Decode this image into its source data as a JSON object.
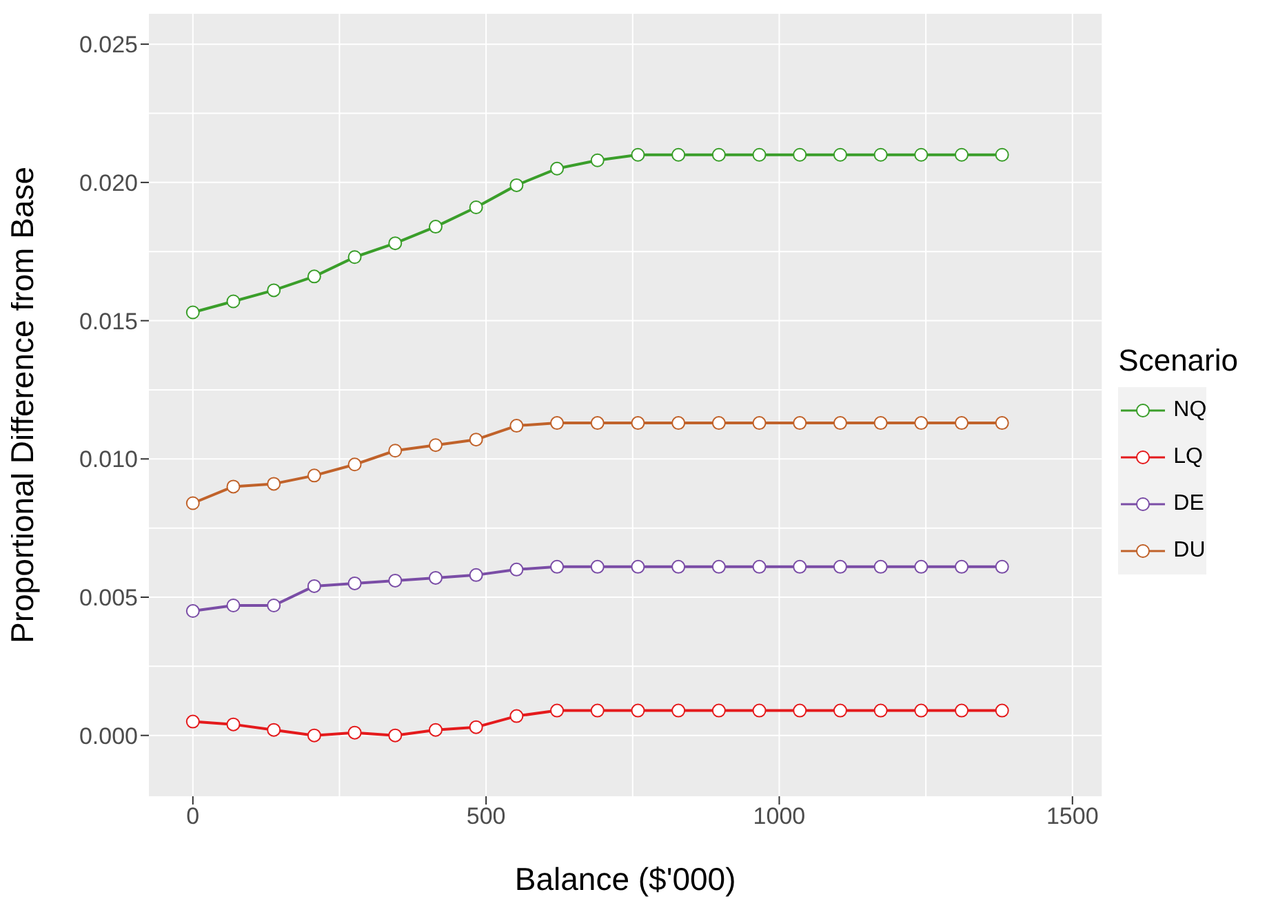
{
  "chart_data": {
    "type": "line",
    "xlabel": "Balance ($'000)",
    "ylabel": "Proportional Difference from Base",
    "legend_title": "Scenario",
    "x": [
      0,
      69,
      138,
      207,
      276,
      345,
      414,
      483,
      552,
      621,
      690,
      759,
      828,
      897,
      966,
      1035,
      1104,
      1173,
      1242,
      1311,
      1380
    ],
    "series": [
      {
        "name": "NQ",
        "color": "#3a9e2a",
        "values": [
          0.0153,
          0.0157,
          0.0161,
          0.0166,
          0.0173,
          0.0178,
          0.0184,
          0.0191,
          0.0199,
          0.0205,
          0.0208,
          0.021,
          0.021,
          0.021,
          0.021,
          0.021,
          0.021,
          0.021,
          0.021,
          0.021,
          0.021
        ]
      },
      {
        "name": "LQ",
        "color": "#e41a1c",
        "values": [
          0.0005,
          0.0004,
          0.0002,
          0.0,
          0.0001,
          0.0,
          0.0002,
          0.0003,
          0.0007,
          0.0009,
          0.0009,
          0.0009,
          0.0009,
          0.0009,
          0.0009,
          0.0009,
          0.0009,
          0.0009,
          0.0009,
          0.0009,
          0.0009
        ]
      },
      {
        "name": "DE",
        "color": "#7a4da6",
        "values": [
          0.0045,
          0.0047,
          0.0047,
          0.0054,
          0.0055,
          0.0056,
          0.0057,
          0.0058,
          0.006,
          0.0061,
          0.0061,
          0.0061,
          0.0061,
          0.0061,
          0.0061,
          0.0061,
          0.0061,
          0.0061,
          0.0061,
          0.0061,
          0.0061
        ]
      },
      {
        "name": "DU",
        "color": "#c0622a",
        "values": [
          0.0084,
          0.009,
          0.0091,
          0.0094,
          0.0098,
          0.0103,
          0.0105,
          0.0107,
          0.0112,
          0.0113,
          0.0113,
          0.0113,
          0.0113,
          0.0113,
          0.0113,
          0.0113,
          0.0113,
          0.0113,
          0.0113,
          0.0113,
          0.0113
        ]
      }
    ],
    "xlim": [
      -75,
      1550
    ],
    "xticks": [
      0,
      500,
      1000,
      1500
    ],
    "ylim": [
      -0.0022,
      0.0261
    ],
    "yticks": [
      {
        "value": 0,
        "label": "0.000"
      },
      {
        "value": 0.005,
        "label": "0.005"
      },
      {
        "value": 0.01,
        "label": "0.010"
      },
      {
        "value": 0.015,
        "label": "0.015"
      },
      {
        "value": 0.02,
        "label": "0.020"
      },
      {
        "value": 0.025,
        "label": "0.025"
      }
    ],
    "grid": true,
    "legend": "right",
    "marker": "circle",
    "line_style": "solid"
  }
}
